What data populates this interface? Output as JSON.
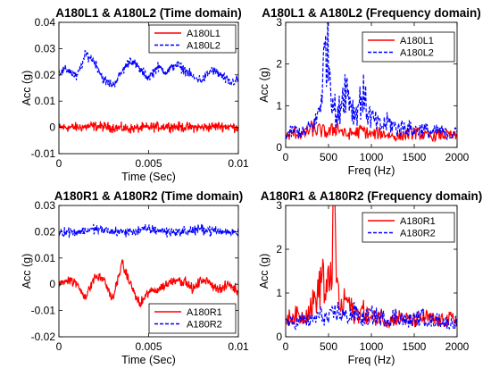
{
  "chart_data": [
    {
      "type": "line",
      "title": "A180L1 & A180L2 (Time domain)",
      "xlabel": "Time (Sec)",
      "ylabel": "Acc (g)",
      "xlim": [
        0,
        0.01
      ],
      "ylim": [
        -0.01,
        0.04
      ],
      "xticks": [
        0,
        0.005,
        0.01
      ],
      "xtick_labels": [
        "0",
        "0.005",
        "0.01"
      ],
      "yticks": [
        -0.01,
        0,
        0.01,
        0.02,
        0.03,
        0.04
      ],
      "ytick_labels": [
        "-0.01",
        "0",
        "0.01",
        "0.02",
        "0.03",
        "0.04"
      ],
      "grid": false,
      "legend_position": "top-right",
      "series": [
        {
          "name": "A180L1",
          "color": "#ff0000",
          "style": "solid",
          "x": [
            0,
            0.001,
            0.002,
            0.003,
            0.004,
            0.005,
            0.006,
            0.007,
            0.008,
            0.009,
            0.01
          ],
          "y": [
            0.0,
            0.0,
            0.0005,
            0.0,
            -0.0005,
            0.0,
            0.0005,
            0.0,
            0.0,
            0.0005,
            0.0
          ]
        },
        {
          "name": "A180L2",
          "color": "#0000ff",
          "style": "dashed",
          "x": [
            0,
            0.0005,
            0.001,
            0.0015,
            0.002,
            0.0025,
            0.003,
            0.0035,
            0.004,
            0.0045,
            0.005,
            0.0055,
            0.006,
            0.0065,
            0.007,
            0.0075,
            0.008,
            0.0085,
            0.009,
            0.0095,
            0.01
          ],
          "y": [
            0.021,
            0.022,
            0.019,
            0.028,
            0.025,
            0.018,
            0.016,
            0.021,
            0.026,
            0.022,
            0.019,
            0.023,
            0.021,
            0.024,
            0.022,
            0.019,
            0.018,
            0.022,
            0.02,
            0.017,
            0.018
          ]
        }
      ]
    },
    {
      "type": "line",
      "title": "A180L1 & A180L2 (Frequency domain)",
      "xlabel": "Freq (Hz)",
      "ylabel": "Acc (g)",
      "xlim": [
        0,
        2000
      ],
      "ylim": [
        0,
        3
      ],
      "xticks": [
        0,
        500,
        1000,
        1500,
        2000
      ],
      "xtick_labels": [
        "0",
        "500",
        "1000",
        "1500",
        "2000"
      ],
      "yticks": [
        0,
        1,
        2,
        3
      ],
      "ytick_labels": [
        "0",
        "1",
        "2",
        "3"
      ],
      "grid": false,
      "legend_position": "top-right",
      "series": [
        {
          "name": "A180L1",
          "color": "#ff0000",
          "style": "solid",
          "x": [
            0,
            100,
            200,
            300,
            400,
            500,
            600,
            700,
            800,
            900,
            1000,
            1100,
            1200,
            1300,
            1400,
            1500,
            1600,
            1700,
            1800,
            1900,
            2000
          ],
          "y": [
            0.25,
            0.35,
            0.3,
            0.45,
            0.4,
            0.35,
            0.5,
            0.3,
            0.35,
            0.4,
            0.3,
            0.35,
            0.3,
            0.25,
            0.3,
            0.35,
            0.3,
            0.25,
            0.3,
            0.3,
            0.25
          ]
        },
        {
          "name": "A180L2",
          "color": "#0000ff",
          "style": "dashed",
          "x": [
            0,
            100,
            200,
            300,
            350,
            400,
            450,
            480,
            520,
            560,
            600,
            650,
            700,
            750,
            800,
            850,
            900,
            950,
            1000,
            1100,
            1200,
            1300,
            1400,
            1500,
            1600,
            1700,
            1800,
            1900,
            2000
          ],
          "y": [
            0.3,
            0.4,
            0.35,
            0.5,
            0.6,
            1.0,
            2.0,
            2.7,
            1.8,
            1.1,
            0.6,
            1.2,
            1.5,
            1.2,
            0.8,
            1.0,
            1.3,
            0.9,
            0.7,
            0.5,
            0.6,
            0.45,
            0.5,
            0.4,
            0.45,
            0.35,
            0.4,
            0.3,
            0.35
          ]
        }
      ]
    },
    {
      "type": "line",
      "title": "A180R1 & A180R2 (Time domain)",
      "xlabel": "Time (Sec)",
      "ylabel": "Acc (g)",
      "xlim": [
        0,
        0.01
      ],
      "ylim": [
        -0.02,
        0.03
      ],
      "xticks": [
        0,
        0.005,
        0.01
      ],
      "xtick_labels": [
        "0",
        "0.005",
        "0.01"
      ],
      "yticks": [
        -0.02,
        -0.01,
        0,
        0.01,
        0.02,
        0.03
      ],
      "ytick_labels": [
        "-0.02",
        "-0.01",
        "0",
        "0.01",
        "0.02",
        "0.03"
      ],
      "grid": false,
      "legend_position": "bottom-right",
      "series": [
        {
          "name": "A180R1",
          "color": "#ff0000",
          "style": "solid",
          "x": [
            0,
            0.0005,
            0.001,
            0.0015,
            0.002,
            0.0025,
            0.003,
            0.0035,
            0.004,
            0.0045,
            0.005,
            0.0055,
            0.006,
            0.0065,
            0.007,
            0.0075,
            0.008,
            0.0085,
            0.009,
            0.0095,
            0.01
          ],
          "y": [
            0.0,
            0.002,
            0.0,
            -0.005,
            0.003,
            0.002,
            -0.006,
            0.008,
            0.0,
            -0.008,
            -0.003,
            -0.002,
            0.0,
            0.002,
            0.001,
            -0.002,
            0.002,
            0.0,
            -0.002,
            0.0,
            -0.003
          ]
        },
        {
          "name": "A180R2",
          "color": "#0000ff",
          "style": "dashed",
          "x": [
            0,
            0.001,
            0.002,
            0.003,
            0.004,
            0.005,
            0.006,
            0.007,
            0.008,
            0.009,
            0.01
          ],
          "y": [
            0.02,
            0.02,
            0.021,
            0.02,
            0.02,
            0.021,
            0.02,
            0.02,
            0.021,
            0.02,
            0.02
          ]
        }
      ]
    },
    {
      "type": "line",
      "title": "A180R1 & A180R2 (Frequency domain)",
      "xlabel": "Freq (Hz)",
      "ylabel": "Acc (g)",
      "xlim": [
        0,
        2000
      ],
      "ylim": [
        0,
        3
      ],
      "xticks": [
        0,
        500,
        1000,
        1500,
        2000
      ],
      "xtick_labels": [
        "0",
        "500",
        "1000",
        "1500",
        "2000"
      ],
      "yticks": [
        0,
        1,
        2,
        3
      ],
      "ytick_labels": [
        "0",
        "1",
        "2",
        "3"
      ],
      "grid": false,
      "legend_position": "top-right",
      "series": [
        {
          "name": "A180R1",
          "color": "#ff0000",
          "style": "solid",
          "x": [
            0,
            100,
            200,
            300,
            400,
            430,
            460,
            500,
            540,
            570,
            600,
            650,
            700,
            800,
            900,
            1000,
            1100,
            1200,
            1300,
            1400,
            1500,
            1600,
            1700,
            1800,
            1900,
            2000
          ],
          "y": [
            0.4,
            0.5,
            0.45,
            0.7,
            1.1,
            1.7,
            0.8,
            1.2,
            1.8,
            2.9,
            1.1,
            0.6,
            0.9,
            0.5,
            0.6,
            0.4,
            0.5,
            0.35,
            0.45,
            0.4,
            0.35,
            0.45,
            0.4,
            0.35,
            0.4,
            0.4
          ]
        },
        {
          "name": "A180R2",
          "color": "#0000ff",
          "style": "dashed",
          "x": [
            0,
            100,
            200,
            300,
            400,
            500,
            600,
            700,
            800,
            900,
            1000,
            1100,
            1200,
            1300,
            1400,
            1500,
            1600,
            1700,
            1800,
            1900,
            2000
          ],
          "y": [
            0.35,
            0.3,
            0.4,
            0.35,
            0.5,
            0.4,
            0.6,
            0.45,
            0.55,
            0.4,
            0.5,
            0.45,
            0.4,
            0.5,
            0.35,
            0.4,
            0.45,
            0.35,
            0.4,
            0.3,
            0.35
          ]
        }
      ]
    }
  ]
}
